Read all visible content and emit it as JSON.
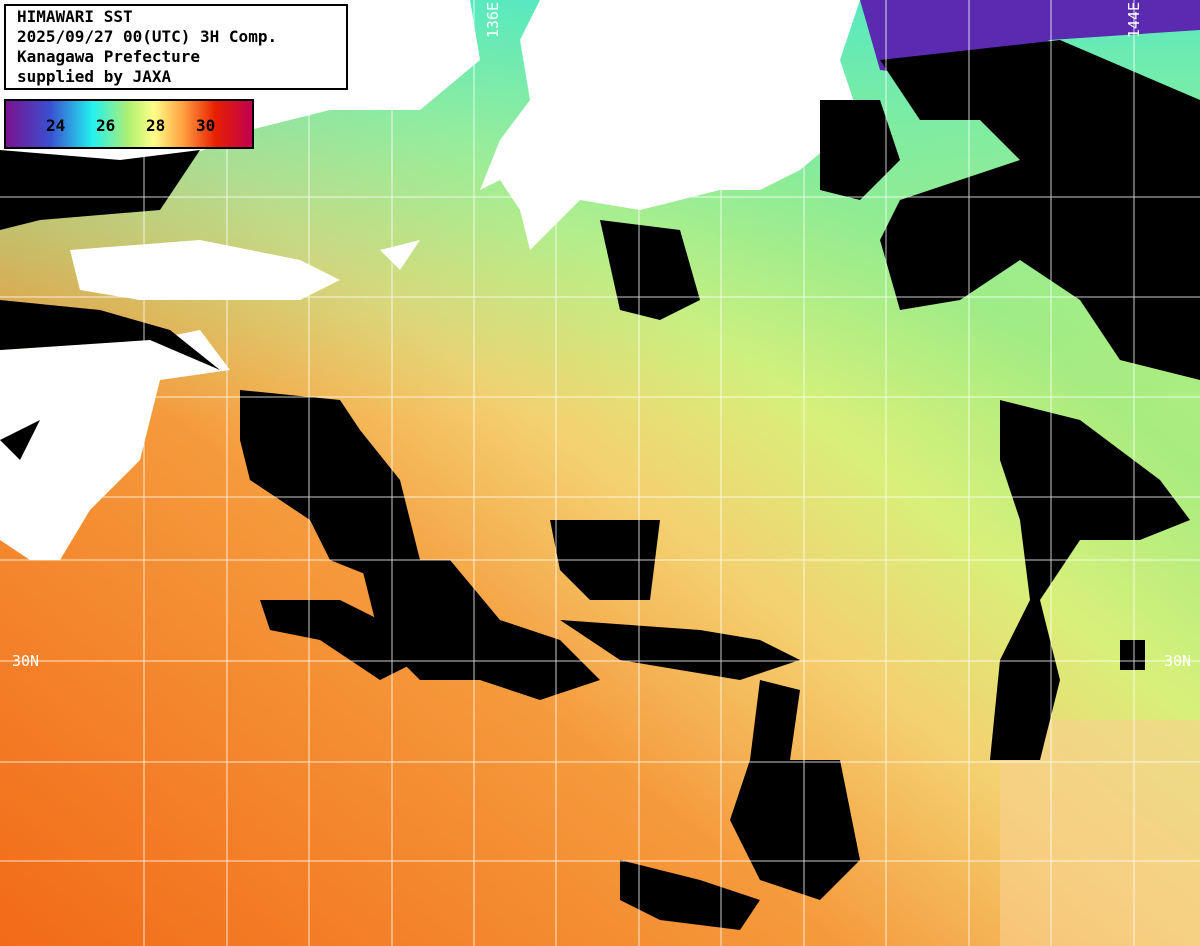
{
  "header": {
    "title": "HIMAWARI SST",
    "datetime": "2025/09/27 00(UTC) 3H Comp.",
    "provider": "Kanagawa Prefecture",
    "credit": "supplied by JAXA"
  },
  "colorbar": {
    "ticks": [
      "24",
      "26",
      "28",
      "30"
    ],
    "colors": [
      "#7a1290",
      "#3a4fd0",
      "#22f0f0",
      "#b0f070",
      "#ffff88",
      "#ffa040",
      "#e82000",
      "#c00050"
    ]
  },
  "grid_labels": {
    "lon_west": "136E",
    "lon_east": "144E",
    "lat_left": "30N",
    "lat_right": "30N"
  },
  "colors": {
    "land": "#ffffff",
    "cloud": "#000000",
    "grid": "#ffffff"
  }
}
